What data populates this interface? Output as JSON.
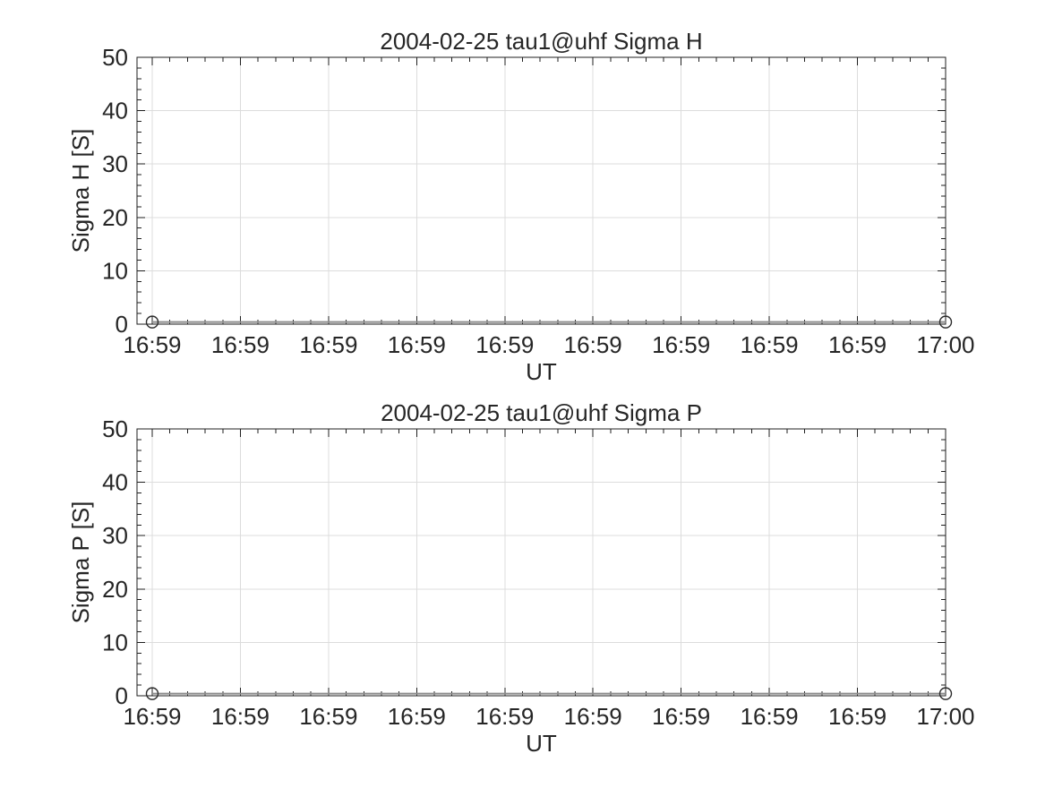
{
  "figure": {
    "background": "#ffffff",
    "axis_color": "#1f1f1f",
    "text_color": "#262626",
    "grid_color": "#dcdcdc",
    "line_color": "#8c8c8c",
    "marker_color": "#2b2b2b"
  },
  "chart_data": [
    {
      "type": "line",
      "title": "2004-02-25  tau1@uhf Sigma H",
      "xlabel": "UT",
      "ylabel": "Sigma H [S]",
      "ylim": [
        0,
        50
      ],
      "yticks": [
        0,
        10,
        20,
        30,
        40,
        50
      ],
      "y_minor_per_interval": 4,
      "xtick_labels": [
        "16:59",
        "16:59",
        "16:59",
        "16:59",
        "16:59",
        "16:59",
        "16:59",
        "16:59",
        "16:59",
        "17:00"
      ],
      "x_minor_per_interval": 4,
      "grid": true,
      "box": true,
      "legend_position": "none",
      "series": [
        {
          "name": "Sigma H",
          "marker": "circle",
          "x_tick_index": [
            0,
            9
          ],
          "values": [
            0.4,
            0.4
          ]
        }
      ]
    },
    {
      "type": "line",
      "title": "2004-02-25  tau1@uhf Sigma P",
      "xlabel": "UT",
      "ylabel": "Sigma P [S]",
      "ylim": [
        0,
        50
      ],
      "yticks": [
        0,
        10,
        20,
        30,
        40,
        50
      ],
      "y_minor_per_interval": 4,
      "xtick_labels": [
        "16:59",
        "16:59",
        "16:59",
        "16:59",
        "16:59",
        "16:59",
        "16:59",
        "16:59",
        "16:59",
        "17:00"
      ],
      "x_minor_per_interval": 4,
      "grid": true,
      "box": true,
      "legend_position": "none",
      "series": [
        {
          "name": "Sigma P",
          "marker": "circle",
          "x_tick_index": [
            0,
            9
          ],
          "values": [
            0.4,
            0.4
          ]
        }
      ]
    }
  ]
}
